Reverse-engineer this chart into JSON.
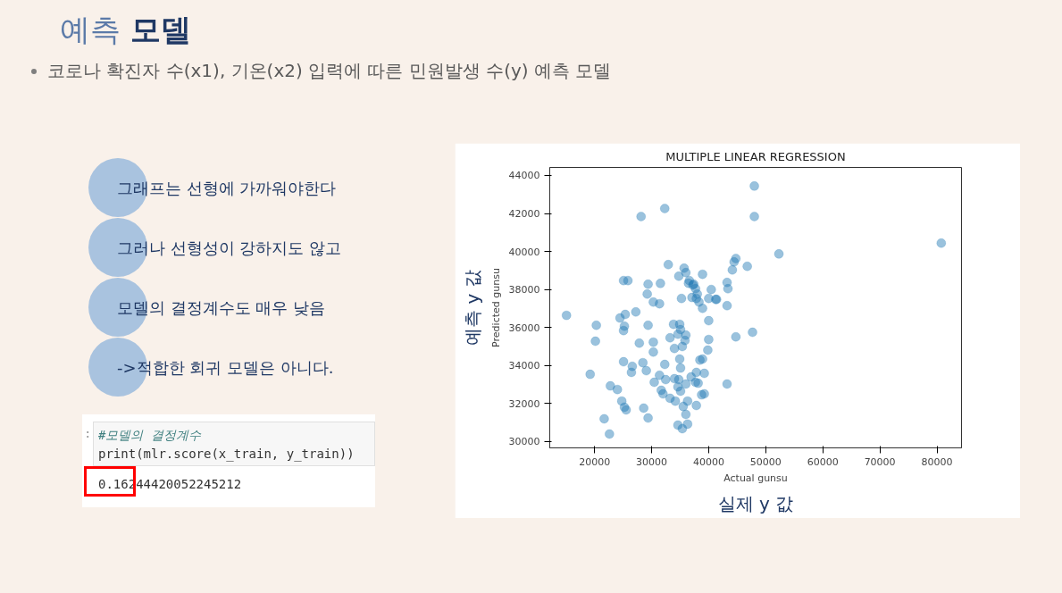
{
  "chart_data": {
    "type": "scatter",
    "title": "MULTIPLE LINEAR REGRESSION",
    "xlabel": "Actual gunsu",
    "ylabel": "Predicted gunsu",
    "annotations": [
      "예측 모델",
      "코로나 확진자 수(x1), 기온(x2) 입력에 따른 민원발생 수(y) 예측 모델",
      "그래프는 선형에 가까워야한다",
      "그러나 선형성이 강하지도 않고",
      "모델의 결정계수도 매우 낮음",
      "->적합한 회귀 모델은 아니다.",
      ":",
      "#모델의 결정계수",
      "print(mlr.score(x_train, y_train))",
      "0.16244420052245212",
      "예측 y 값",
      "실제 y 값"
    ],
    "x": [
      48000,
      28150,
      32300,
      48000,
      80750,
      52300,
      44760,
      44450,
      46760,
      44140,
      32920,
      35690,
      36000,
      38920,
      25080,
      25850,
      29380,
      31540,
      36610,
      37230,
      37690,
      38000,
      40450,
      43220,
      43370,
      29230,
      15080,
      20310,
      20150,
      24460,
      25380,
      27230,
      25230,
      25080,
      29380,
      27840,
      30300,
      30300,
      33230,
      33840,
      34920,
      35070,
      34610,
      36000,
      35840,
      34000,
      35380,
      40000,
      40000,
      39840,
      44760,
      47680,
      38920,
      38460,
      34920,
      32300,
      28460,
      26610,
      25080,
      26460,
      29070,
      19230,
      22770,
      24000,
      24770,
      25540,
      25230,
      21690,
      22610,
      28610,
      29380,
      31380,
      30460,
      32460,
      34000,
      34760,
      35070,
      36920,
      37840,
      39230,
      37690,
      38150,
      31690,
      32000,
      33230,
      34150,
      34610,
      35070,
      36000,
      36300,
      35530,
      36000,
      37840,
      38760,
      39230,
      43220,
      34610,
      35380,
      36300,
      43220,
      38920,
      41380,
      40000,
      35230,
      37840,
      37070,
      38300,
      31380,
      30300,
      41230,
      34760,
      36460,
      37380
    ],
    "values": [
      43440,
      41840,
      42260,
      41840,
      40440,
      39870,
      39630,
      39450,
      39220,
      39030,
      39310,
      39120,
      38890,
      38800,
      38470,
      38470,
      38280,
      38320,
      38470,
      38230,
      38040,
      37760,
      38000,
      38370,
      38040,
      37760,
      36640,
      36120,
      35280,
      36500,
      36690,
      36820,
      36070,
      35840,
      36120,
      35180,
      35230,
      34710,
      35460,
      36170,
      36170,
      35890,
      35650,
      35600,
      35320,
      34900,
      35000,
      36360,
      35370,
      34810,
      35510,
      35750,
      34340,
      34290,
      34340,
      34060,
      34150,
      33960,
      34200,
      33640,
      33730,
      33540,
      32930,
      32740,
      32130,
      31670,
      31810,
      31200,
      30400,
      31760,
      31240,
      33490,
      33120,
      33260,
      33310,
      33260,
      33870,
      33400,
      33640,
      33590,
      33120,
      33070,
      32700,
      32510,
      32280,
      32130,
      32880,
      32650,
      33030,
      32130,
      31850,
      31430,
      31900,
      32460,
      32510,
      33030,
      30870,
      30680,
      30920,
      37150,
      37010,
      37480,
      37530,
      37530,
      37530,
      37580,
      37340,
      37250,
      37340,
      37480,
      38700,
      38330,
      38280
    ],
    "color": "#1f77b4",
    "marker": "circle",
    "grid": false,
    "xlim": [
      12150,
      84300
    ],
    "ylim": [
      29670,
      44420
    ],
    "xticks": [
      20000,
      30000,
      40000,
      50000,
      60000,
      70000,
      80000
    ],
    "yticks": [
      30000,
      32000,
      34000,
      36000,
      38000,
      40000,
      42000,
      44000
    ]
  }
}
